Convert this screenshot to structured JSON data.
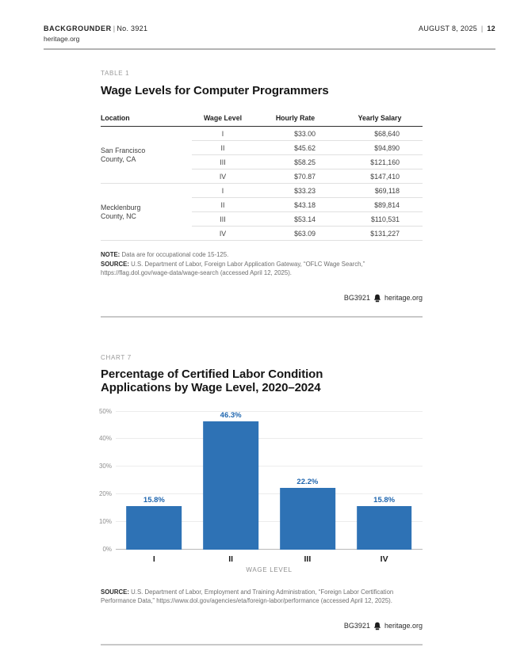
{
  "masthead": {
    "publication": "BACKGROUNDER",
    "divider": "|",
    "issue": "No. 3921",
    "site": "heritage.org",
    "date": "AUGUST 8, 2025",
    "page_number": "12"
  },
  "table_section": {
    "kicker": "TABLE 1",
    "title": "Wage Levels for Computer Programmers",
    "columns": [
      "Location",
      "Wage Level",
      "Hourly Rate",
      "Yearly Salary"
    ],
    "groups": [
      {
        "location": "San Francisco County, CA",
        "rows": [
          [
            "I",
            "$33.00",
            "$68,640"
          ],
          [
            "II",
            "$45.62",
            "$94,890"
          ],
          [
            "III",
            "$58.25",
            "$121,160"
          ],
          [
            "IV",
            "$70.87",
            "$147,410"
          ]
        ]
      },
      {
        "location": "Mecklenburg County, NC",
        "rows": [
          [
            "I",
            "$33.23",
            "$69,118"
          ],
          [
            "II",
            "$43.18",
            "$89,814"
          ],
          [
            "III",
            "$53.14",
            "$110,531"
          ],
          [
            "IV",
            "$63.09",
            "$131,227"
          ]
        ]
      }
    ],
    "note_label": "NOTE:",
    "note": "Data are for occupational code 15-125.",
    "source_label": "SOURCE:",
    "source": "U.S. Department of Labor, Foreign Labor Application Gateway, “OFLC Wage Search,” https://flag.dol.gov/wage-data/wage-search (accessed April 12, 2025).",
    "credit_id": "BG3921",
    "credit_site": "heritage.org"
  },
  "chart_section": {
    "kicker": "CHART 7",
    "title_line1": "Percentage of Certified Labor Condition",
    "title_line2": "Applications by Wage Level, 2020–2024",
    "source_label": "SOURCE:",
    "source": "U.S. Department of Labor, Employment and Training Administration, “Foreign Labor Certification Performance Data,” https://www.dol.gov/agencies/eta/foreign-labor/performance (accessed April 12, 2025).",
    "credit_id": "BG3921",
    "credit_site": "heritage.org"
  },
  "chart_data": {
    "type": "bar",
    "title": "Percentage of Certified Labor Condition Applications by Wage Level, 2020–2024",
    "categories": [
      "I",
      "II",
      "III",
      "IV"
    ],
    "values": [
      15.8,
      46.3,
      22.2,
      15.8
    ],
    "value_labels": [
      "15.8%",
      "46.3%",
      "22.2%",
      "15.8%"
    ],
    "xlabel": "WAGE LEVEL",
    "ylabel": "",
    "ylim": [
      0,
      50
    ],
    "yticks": [
      0,
      10,
      20,
      30,
      40,
      50
    ],
    "ytick_labels": [
      "0%",
      "10%",
      "20%",
      "30%",
      "40%",
      "50%"
    ],
    "grid": true,
    "legend": false,
    "bar_color": "#2e72b5",
    "label_color": "#1f66af"
  },
  "icons": {
    "credit_logo": "heritage-liberty-bell-icon"
  },
  "colors": {
    "bar_blue": "#2e72b5",
    "label_blue": "#1f66af",
    "rule_gray": "#c9c9c9",
    "header_rule_dark": "#2e2e2e"
  }
}
